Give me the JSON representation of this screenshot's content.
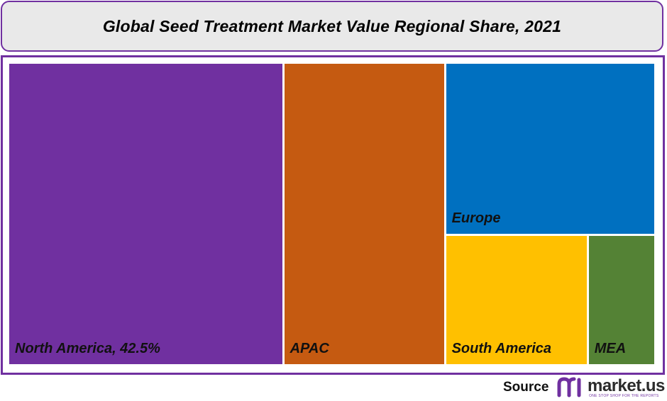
{
  "title": "Global Seed Treatment Market Value Regional Share, 2021",
  "chart_data": {
    "type": "treemap",
    "title": "Global Seed Treatment Market Value Regional Share, 2021",
    "tiles": [
      {
        "label": "North America, 42.5%",
        "region": "North America",
        "value": 42.5,
        "color": "#7030a0"
      },
      {
        "label": "APAC",
        "region": "APAC",
        "value": 25.0,
        "color": "#c55a11"
      },
      {
        "label": "Europe",
        "region": "Europe",
        "value": 18.5,
        "color": "#0070c0"
      },
      {
        "label": "South America",
        "region": "South America",
        "value": 9.5,
        "color": "#ffc000"
      },
      {
        "label": "MEA",
        "region": "MEA",
        "value": 4.5,
        "color": "#548235"
      }
    ]
  },
  "footer": {
    "source_label": "Source",
    "logo_text": "market.us",
    "logo_tagline": "ONE STOP SHOP FOR THE REPORTS",
    "logo_color": "#7030a0"
  }
}
